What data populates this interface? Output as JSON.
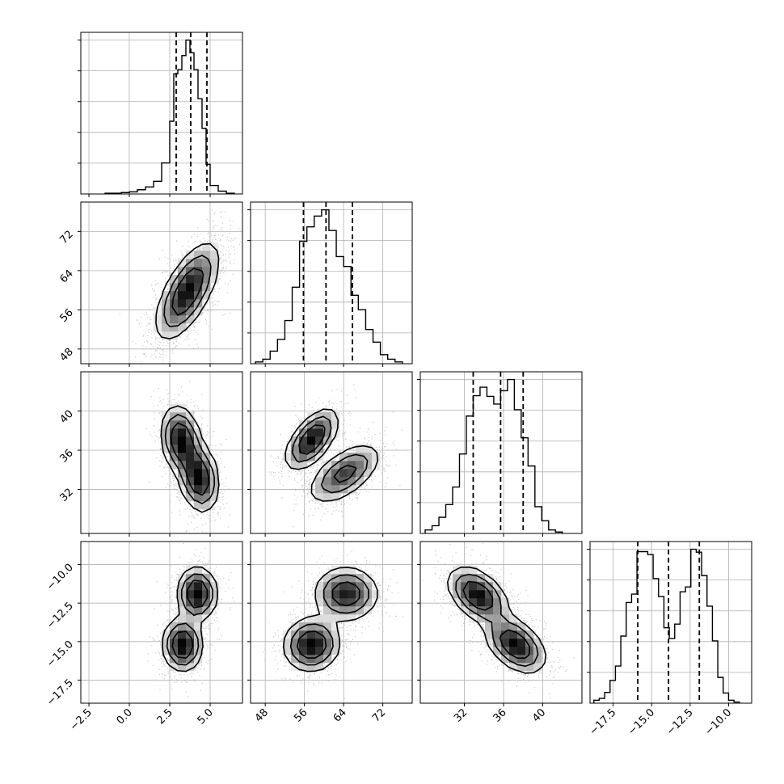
{
  "chart_data": {
    "type": "corner",
    "title": "",
    "grid": true,
    "colors": {
      "line": "#000000",
      "grid": "#b0b0b0",
      "points": "#bdbdbd"
    },
    "parameters": [
      {
        "range": [
          -3.0,
          7.0
        ],
        "ticks": [
          -2.5,
          0.0,
          2.5,
          5.0
        ],
        "tick_labels": [
          "−2.5",
          "0.0",
          "2.5",
          "5.0"
        ],
        "quantiles": [
          2.9,
          3.8,
          4.8
        ],
        "histogram": {
          "bin_edges": [
            -1.5,
            -1.0,
            -0.5,
            0.0,
            0.5,
            1.0,
            1.5,
            2.0,
            2.5,
            2.75,
            3.0,
            3.25,
            3.5,
            3.75,
            4.0,
            4.25,
            4.5,
            4.75,
            5.0,
            5.5,
            6.0,
            6.5
          ],
          "counts": [
            1,
            1,
            2,
            3,
            6,
            10,
            18,
            44,
            103,
            170,
            176,
            196,
            218,
            200,
            176,
            135,
            93,
            42,
            12,
            4,
            1
          ]
        }
      },
      {
        "range": [
          45.0,
          78.0
        ],
        "ticks": [
          48,
          56,
          64,
          72
        ],
        "tick_labels": [
          "48",
          "56",
          "64",
          "72"
        ],
        "quantiles": [
          55.8,
          60.4,
          65.8
        ],
        "histogram": {
          "bin_edges": [
            46.0,
            47.5,
            49.0,
            50.5,
            52.0,
            53.5,
            55.0,
            56.5,
            58.0,
            59.5,
            61.0,
            62.5,
            64.0,
            65.5,
            67.0,
            68.5,
            70.0,
            71.5,
            73.0,
            74.5,
            76.0
          ],
          "counts": [
            2,
            5,
            14,
            27,
            48,
            85,
            136,
            152,
            164,
            171,
            148,
            119,
            108,
            76,
            60,
            38,
            24,
            10,
            5,
            2
          ]
        }
      },
      {
        "range": [
          27.5,
          44.0
        ],
        "ticks": [
          32,
          36,
          40
        ],
        "tick_labels": [
          "32",
          "36",
          "40"
        ],
        "quantiles": [
          32.9,
          35.7,
          38.0
        ],
        "histogram": {
          "bin_edges": [
            28.0,
            28.7,
            29.4,
            30.1,
            30.8,
            31.5,
            32.2,
            32.9,
            33.6,
            34.3,
            35.0,
            35.7,
            36.4,
            37.1,
            37.8,
            38.5,
            39.2,
            39.9,
            40.6,
            41.3,
            42.0
          ],
          "counts": [
            5,
            11,
            23,
            41,
            66,
            113,
            167,
            196,
            208,
            195,
            184,
            203,
            219,
            176,
            136,
            96,
            38,
            18,
            5,
            2
          ]
        }
      },
      {
        "range": [
          -19.0,
          -8.5
        ],
        "ticks": [
          -17.5,
          -15.0,
          -12.5,
          -10.0
        ],
        "tick_labels": [
          "−17.5",
          "−15.0",
          "−12.5",
          "−10.0"
        ],
        "quantiles": [
          -15.9,
          -13.9,
          -11.9
        ],
        "histogram": {
          "bin_edges": [
            -18.75,
            -18.4,
            -18.05,
            -17.7,
            -17.35,
            -17.0,
            -16.65,
            -16.3,
            -15.95,
            -15.6,
            -15.25,
            -14.9,
            -14.55,
            -14.2,
            -13.85,
            -13.5,
            -13.15,
            -12.8,
            -12.45,
            -12.1,
            -11.75,
            -11.4,
            -11.05,
            -10.7,
            -10.35,
            -10.0,
            -9.65,
            -9.3
          ],
          "counts": [
            5,
            8,
            18,
            38,
            62,
            112,
            168,
            182,
            253,
            253,
            248,
            208,
            178,
            126,
            108,
            132,
            186,
            194,
            257,
            252,
            213,
            162,
            104,
            43,
            17,
            5,
            2
          ]
        }
      }
    ],
    "pairs": [
      {
        "x": 0,
        "y": 1,
        "modes": [
          {
            "mean": [
              3.6,
              59.8
            ],
            "sd": [
              0.95,
              4.8
            ],
            "rho": 0.65,
            "weight": 1.0
          }
        ]
      },
      {
        "x": 0,
        "y": 2,
        "modes": [
          {
            "mean": [
              3.2,
              37.0
            ],
            "sd": [
              0.6,
              1.7
            ],
            "rho": -0.2,
            "weight": 0.5
          },
          {
            "mean": [
              4.3,
              33.2
            ],
            "sd": [
              0.6,
              1.7
            ],
            "rho": -0.2,
            "weight": 0.5
          }
        ]
      },
      {
        "x": 1,
        "y": 2,
        "modes": [
          {
            "mean": [
              57.5,
              37.1
            ],
            "sd": [
              2.6,
              1.5
            ],
            "rho": 0.6,
            "weight": 0.5
          },
          {
            "mean": [
              64.2,
              33.6
            ],
            "sd": [
              3.6,
              1.5
            ],
            "rho": 0.6,
            "weight": 0.5
          }
        ]
      },
      {
        "x": 0,
        "y": 3,
        "modes": [
          {
            "mean": [
              4.2,
              -11.9
            ],
            "sd": [
              0.6,
              0.85
            ],
            "rho": 0.0,
            "weight": 0.5
          },
          {
            "mean": [
              3.3,
              -15.2
            ],
            "sd": [
              0.6,
              0.85
            ],
            "rho": 0.0,
            "weight": 0.5
          }
        ]
      },
      {
        "x": 1,
        "y": 3,
        "modes": [
          {
            "mean": [
              64.5,
              -11.9
            ],
            "sd": [
              3.2,
              0.85
            ],
            "rho": 0.0,
            "weight": 0.5
          },
          {
            "mean": [
              57.5,
              -15.2
            ],
            "sd": [
              2.8,
              0.85
            ],
            "rho": 0.05,
            "weight": 0.5
          }
        ]
      },
      {
        "x": 2,
        "y": 3,
        "modes": [
          {
            "mean": [
              33.4,
              -12.0
            ],
            "sd": [
              1.5,
              0.9
            ],
            "rho": -0.45,
            "weight": 0.5
          },
          {
            "mean": [
              37.2,
              -15.2
            ],
            "sd": [
              1.5,
              0.9
            ],
            "rho": -0.45,
            "weight": 0.5
          }
        ]
      }
    ]
  }
}
